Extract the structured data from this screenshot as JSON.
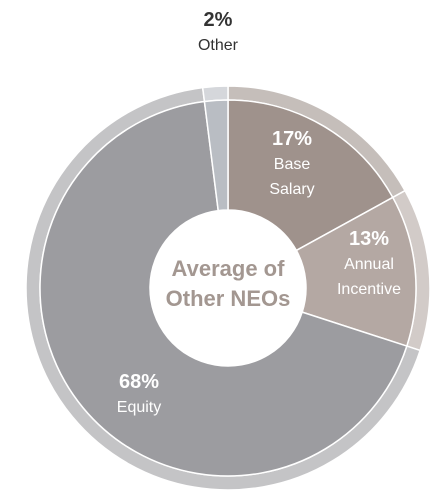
{
  "chart_data": {
    "type": "pie",
    "categories": [
      "Base Salary",
      "Annual Incentive",
      "Equity",
      "Other"
    ],
    "values": [
      17,
      13,
      68,
      2
    ],
    "value_labels": [
      "17%",
      "13%",
      "68%",
      "2%"
    ],
    "colors": [
      "#9f928c",
      "#b4a8a3",
      "#9c9ca0",
      "#b9bdc3"
    ],
    "center_label": "Average of Other NEOs"
  }
}
